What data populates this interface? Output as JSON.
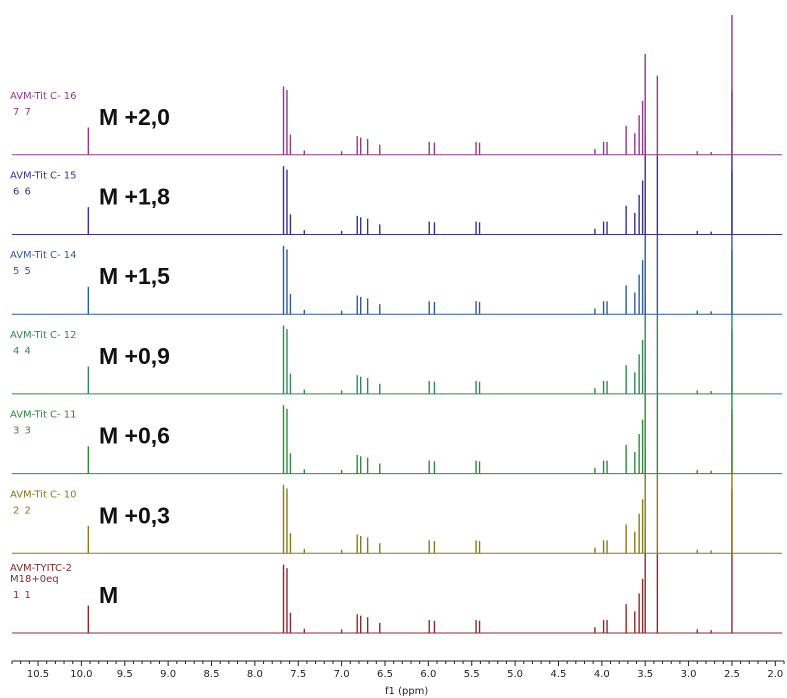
{
  "chart_data": {
    "type": "line",
    "xlabel": "f1 (ppm)",
    "xlim": [
      10.8,
      1.9
    ],
    "x_reversed": true,
    "x_ticks": [
      "10.5",
      "10.0",
      "9.5",
      "9.0",
      "8.5",
      "8.0",
      "7.5",
      "7.0",
      "6.5",
      "6.0",
      "5.5",
      "5.0",
      "4.5",
      "4.0",
      "3.5",
      "3.0",
      "2.5",
      "2.0"
    ],
    "grid": false,
    "peaks": [
      {
        "ppm": 9.92,
        "height": 0.38
      },
      {
        "ppm": 7.67,
        "height": 0.95
      },
      {
        "ppm": 7.63,
        "height": 0.9
      },
      {
        "ppm": 7.59,
        "height": 0.28
      },
      {
        "ppm": 7.43,
        "height": 0.06
      },
      {
        "ppm": 7.0,
        "height": 0.05
      },
      {
        "ppm": 6.82,
        "height": 0.26
      },
      {
        "ppm": 6.78,
        "height": 0.24
      },
      {
        "ppm": 6.7,
        "height": 0.22
      },
      {
        "ppm": 6.56,
        "height": 0.14
      },
      {
        "ppm": 5.99,
        "height": 0.18
      },
      {
        "ppm": 5.93,
        "height": 0.17
      },
      {
        "ppm": 5.45,
        "height": 0.18
      },
      {
        "ppm": 5.41,
        "height": 0.17
      },
      {
        "ppm": 4.08,
        "height": 0.08
      },
      {
        "ppm": 3.98,
        "height": 0.18
      },
      {
        "ppm": 3.94,
        "height": 0.18
      },
      {
        "ppm": 3.72,
        "height": 0.4
      },
      {
        "ppm": 3.62,
        "height": 0.3
      },
      {
        "ppm": 3.57,
        "height": 0.55
      },
      {
        "ppm": 3.53,
        "height": 0.75
      },
      {
        "ppm": 3.5,
        "height": 1.4
      },
      {
        "ppm": 3.36,
        "height": 1.1
      },
      {
        "ppm": 2.9,
        "height": 0.05
      },
      {
        "ppm": 2.74,
        "height": 0.04
      },
      {
        "ppm": 2.5,
        "height": 2.0
      }
    ],
    "series": [
      {
        "name_lines": [
          "AVM-TYITC-2",
          "M18+0eq"
        ],
        "id": "1 1",
        "label": "M",
        "color": "#8b2a2a"
      },
      {
        "name_lines": [
          "AVM-Tit C- 10"
        ],
        "id": "2 2",
        "label": "M +0,3",
        "color": "#8a7a14"
      },
      {
        "name_lines": [
          "AVM-Tit C- 11"
        ],
        "id": "3 3",
        "label": "M +0,6",
        "color": "#2e8b3a"
      },
      {
        "name_lines": [
          "AVM-Tit C- 12"
        ],
        "id": "4 4",
        "label": "M +0,9",
        "color": "#2f8a55"
      },
      {
        "name_lines": [
          "AVM-Tit C- 14"
        ],
        "id": "5 5",
        "label": "M +1,5",
        "color": "#2e5c9a"
      },
      {
        "name_lines": [
          "AVM-Tit C- 15"
        ],
        "id": "6 6",
        "label": "M +1,8",
        "color": "#34338f"
      },
      {
        "name_lines": [
          "AVM-Tit C- 16"
        ],
        "id": "7 7",
        "label": "M +2,0",
        "color": "#8e3a8e"
      }
    ]
  }
}
